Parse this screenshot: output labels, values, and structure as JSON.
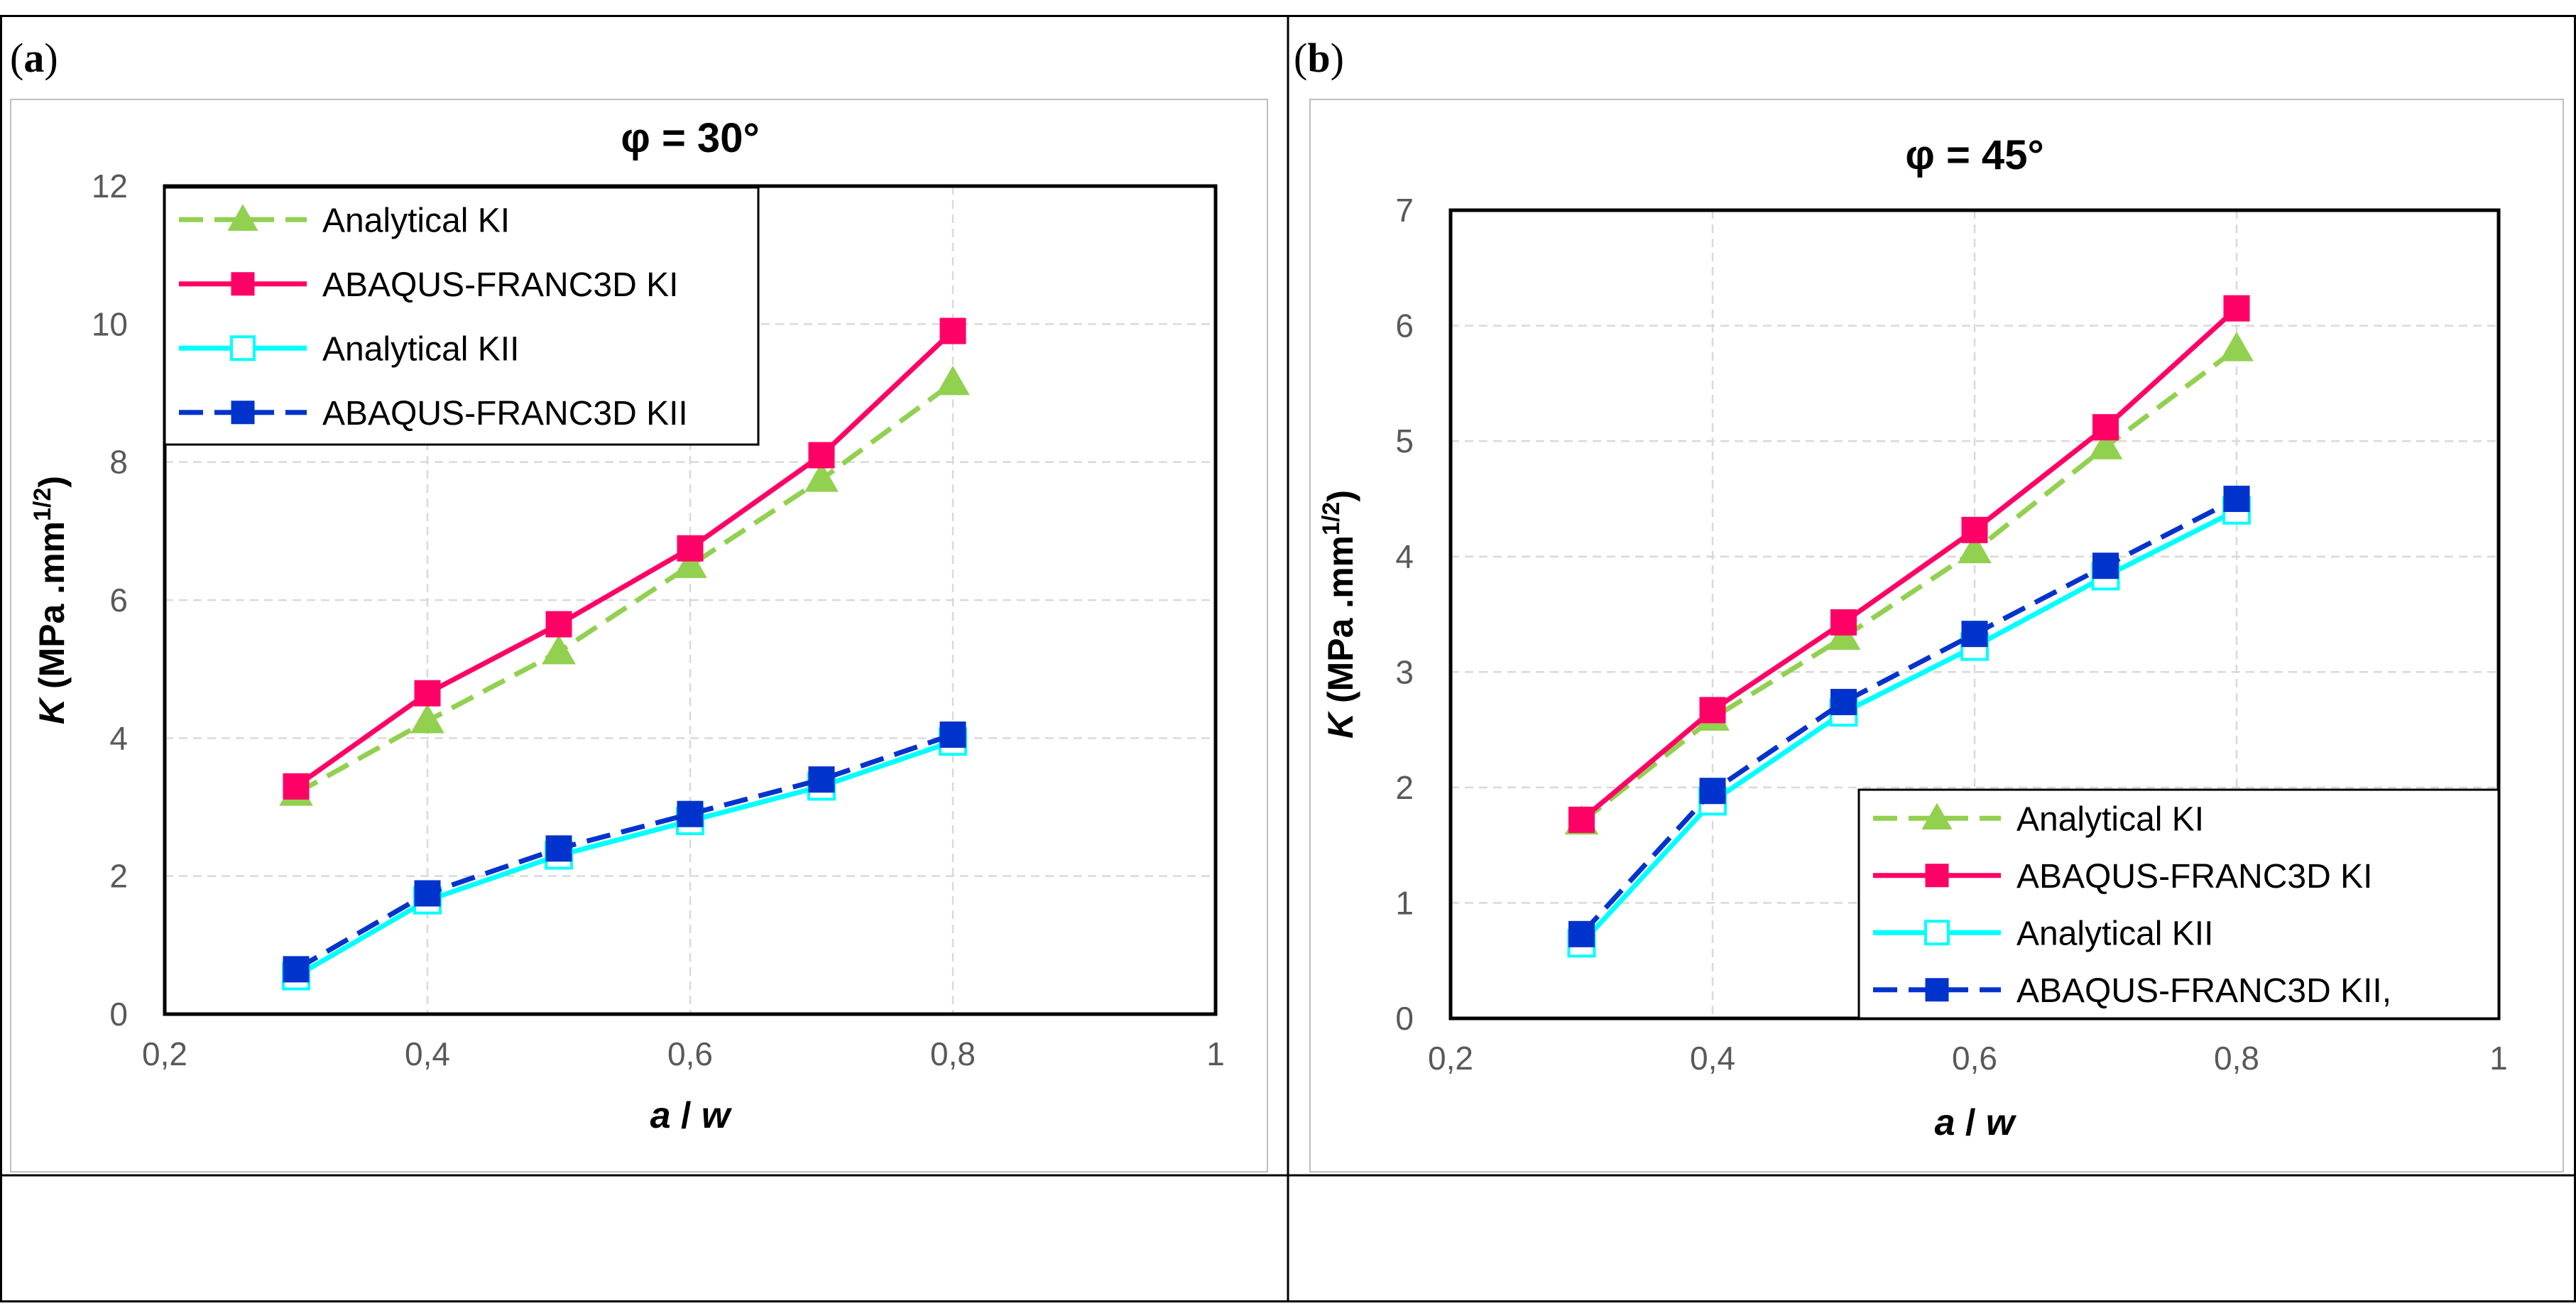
{
  "panels": [
    {
      "letter": "a"
    },
    {
      "letter": "b"
    }
  ],
  "colors": {
    "analytical_ki": "#92D050",
    "abaqus_ki": "#FF0066",
    "analytical_kii": "#00FFFF",
    "abaqus_kii": "#0033CC",
    "grid": "#D9D9D9",
    "axis_text": "#595959"
  },
  "chart_data": [
    {
      "type": "line",
      "title": "φ = 30°",
      "xlabel_parts": [
        "a",
        " / ",
        "w"
      ],
      "ylabel_parts": [
        "K",
        " (MPa .mm",
        "1/2",
        ")"
      ],
      "xlim": [
        0.2,
        1
      ],
      "ylim": [
        0,
        12
      ],
      "xticks": [
        0.2,
        0.4,
        0.6,
        0.8,
        1
      ],
      "xtick_labels": [
        "0,2",
        "0,4",
        "0,6",
        "0,8",
        "1"
      ],
      "yticks": [
        0,
        2,
        4,
        6,
        8,
        10,
        12
      ],
      "ytick_labels": [
        "0",
        "2",
        "4",
        "6",
        "8",
        "10",
        "12"
      ],
      "grid": true,
      "legend_position": "top-left",
      "x": [
        0.3,
        0.4,
        0.5,
        0.6,
        0.7,
        0.8
      ],
      "series": [
        {
          "name": "Analytical KI",
          "values": [
            3.2,
            4.25,
            5.25,
            6.5,
            7.75,
            9.15
          ],
          "color_key": "analytical_ki",
          "dash": true,
          "marker": "triangle"
        },
        {
          "name": "ABAQUS-FRANC3D KI",
          "values": [
            3.3,
            4.65,
            5.65,
            6.75,
            8.1,
            9.9
          ],
          "color_key": "abaqus_ki",
          "dash": false,
          "marker": "square"
        },
        {
          "name": "Analytical KII",
          "values": [
            0.55,
            1.65,
            2.3,
            2.8,
            3.3,
            3.95
          ],
          "color_key": "analytical_kii",
          "dash": false,
          "marker": "open-square"
        },
        {
          "name": "ABAQUS-FRANC3D KII",
          "values": [
            0.65,
            1.75,
            2.4,
            2.9,
            3.4,
            4.05
          ],
          "color_key": "abaqus_kii",
          "dash": true,
          "marker": "square"
        }
      ]
    },
    {
      "type": "line",
      "title": "φ = 45°",
      "xlabel_parts": [
        "a",
        " / ",
        "w"
      ],
      "ylabel_parts": [
        "K",
        " (MPa .mm",
        "1/2",
        ")"
      ],
      "xlim": [
        0.2,
        1
      ],
      "ylim": [
        0,
        7
      ],
      "xticks": [
        0.2,
        0.4,
        0.6,
        0.8,
        1
      ],
      "xtick_labels": [
        "0,2",
        "0,4",
        "0,6",
        "0,8",
        "1"
      ],
      "yticks": [
        0,
        1,
        2,
        3,
        4,
        5,
        6,
        7
      ],
      "ytick_labels": [
        "0",
        "1",
        "2",
        "3",
        "4",
        "5",
        "6",
        "7"
      ],
      "grid": true,
      "legend_position": "bottom-right",
      "x": [
        0.3,
        0.4,
        0.5,
        0.6,
        0.7,
        0.8
      ],
      "series": [
        {
          "name": "Analytical KI",
          "values": [
            1.7,
            2.6,
            3.3,
            4.05,
            4.95,
            5.8
          ],
          "color_key": "analytical_ki",
          "dash": true,
          "marker": "triangle"
        },
        {
          "name": "ABAQUS-FRANC3D KI",
          "values": [
            1.72,
            2.67,
            3.43,
            4.23,
            5.12,
            6.15
          ],
          "color_key": "abaqus_ki",
          "dash": false,
          "marker": "square"
        },
        {
          "name": "Analytical KII",
          "values": [
            0.65,
            1.88,
            2.65,
            3.22,
            3.83,
            4.4
          ],
          "color_key": "analytical_kii",
          "dash": false,
          "marker": "open-square"
        },
        {
          "name": "ABAQUS-FRANC3D KII,",
          "values": [
            0.73,
            1.97,
            2.74,
            3.33,
            3.92,
            4.5
          ],
          "color_key": "abaqus_kii",
          "dash": true,
          "marker": "square"
        }
      ]
    }
  ]
}
